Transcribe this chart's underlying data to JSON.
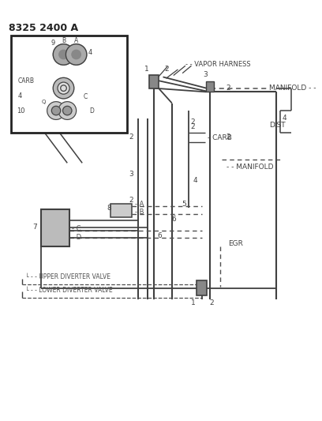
{
  "title": "8325 2400 A",
  "bg_color": "#ffffff",
  "line_color": "#404040",
  "dashed_color": "#505050",
  "labels": {
    "vapor_harness": "- - VAPOR HARNESS",
    "manifold_top": "MANIFOLD - -",
    "manifold_bot": "- - MANIFOLD",
    "dist": "DIST",
    "carb_label": "- CARB",
    "egr": "EGR",
    "upper_diverter": "- - UPPER DIVERTER VALVE",
    "lower_diverter": "- - LOWER DIVERTER VALVE"
  }
}
